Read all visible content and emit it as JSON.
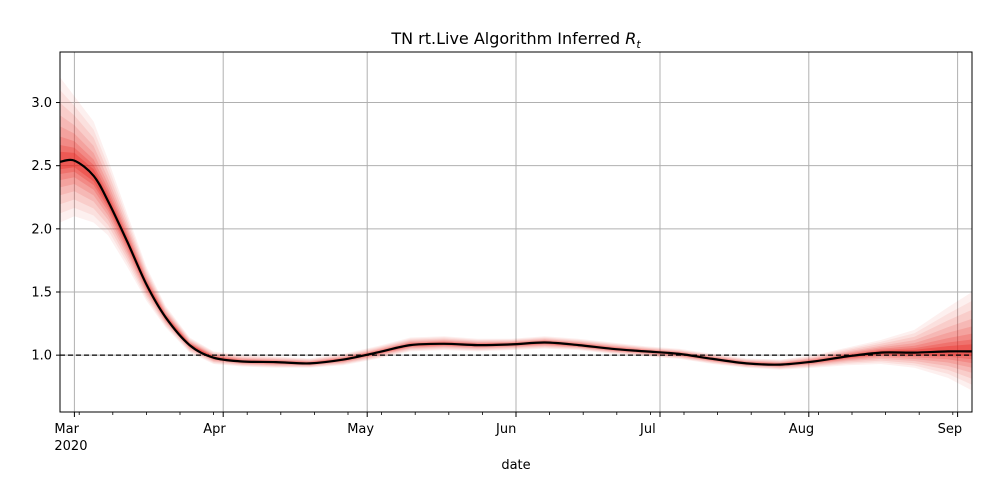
{
  "chart_data": {
    "type": "line",
    "title": "TN rt.Live Algorithm Inferred ",
    "title_symbol": "R",
    "title_subscript": "t",
    "xlabel": "date",
    "ylabel": "",
    "xlim": [
      "2020-02-27",
      "2020-09-04"
    ],
    "ylim": [
      0.55,
      3.4
    ],
    "grid": true,
    "colors": {
      "band": "#e8251e",
      "line": "#000000",
      "reference": "#000000",
      "grid": "#b0b0b0"
    },
    "x_ticks": [
      {
        "date": "2020-03-01",
        "label": "Mar",
        "sublabel": "2020"
      },
      {
        "date": "2020-04-01",
        "label": "Apr",
        "sublabel": ""
      },
      {
        "date": "2020-05-01",
        "label": "May",
        "sublabel": ""
      },
      {
        "date": "2020-06-01",
        "label": "Jun",
        "sublabel": ""
      },
      {
        "date": "2020-07-01",
        "label": "Jul",
        "sublabel": ""
      },
      {
        "date": "2020-08-01",
        "label": "Aug",
        "sublabel": ""
      },
      {
        "date": "2020-09-01",
        "label": "Sep",
        "sublabel": ""
      }
    ],
    "y_ticks": [
      {
        "value": 1.0,
        "label": "1.0"
      },
      {
        "value": 1.5,
        "label": "1.5"
      },
      {
        "value": 2.0,
        "label": "2.0"
      },
      {
        "value": 2.5,
        "label": "2.5"
      },
      {
        "value": 3.0,
        "label": "3.0"
      }
    ],
    "reference_line": {
      "value": 1.0,
      "style": "dashed"
    },
    "series": [
      {
        "points": [
          {
            "x": "2020-02-27",
            "y": 2.53,
            "lo": 2.05,
            "hi": 3.2
          },
          {
            "x": "2020-03-01",
            "y": 2.54,
            "lo": 2.1,
            "hi": 3.05
          },
          {
            "x": "2020-03-05",
            "y": 2.42,
            "lo": 2.05,
            "hi": 2.85
          },
          {
            "x": "2020-03-08",
            "y": 2.22,
            "lo": 1.95,
            "hi": 2.55
          },
          {
            "x": "2020-03-12",
            "y": 1.9,
            "lo": 1.7,
            "hi": 2.12
          },
          {
            "x": "2020-03-16",
            "y": 1.56,
            "lo": 1.43,
            "hi": 1.7
          },
          {
            "x": "2020-03-20",
            "y": 1.3,
            "lo": 1.22,
            "hi": 1.39
          },
          {
            "x": "2020-03-25",
            "y": 1.08,
            "lo": 1.02,
            "hi": 1.14
          },
          {
            "x": "2020-03-30",
            "y": 0.98,
            "lo": 0.93,
            "hi": 1.03
          },
          {
            "x": "2020-04-05",
            "y": 0.95,
            "lo": 0.91,
            "hi": 1.0
          },
          {
            "x": "2020-04-12",
            "y": 0.945,
            "lo": 0.9,
            "hi": 0.99
          },
          {
            "x": "2020-04-19",
            "y": 0.935,
            "lo": 0.9,
            "hi": 0.975
          },
          {
            "x": "2020-04-26",
            "y": 0.965,
            "lo": 0.92,
            "hi": 1.01
          },
          {
            "x": "2020-05-03",
            "y": 1.02,
            "lo": 0.97,
            "hi": 1.07
          },
          {
            "x": "2020-05-10",
            "y": 1.08,
            "lo": 1.03,
            "hi": 1.14
          },
          {
            "x": "2020-05-17",
            "y": 1.09,
            "lo": 1.04,
            "hi": 1.15
          },
          {
            "x": "2020-05-24",
            "y": 1.08,
            "lo": 1.03,
            "hi": 1.13
          },
          {
            "x": "2020-05-31",
            "y": 1.085,
            "lo": 1.04,
            "hi": 1.13
          },
          {
            "x": "2020-06-07",
            "y": 1.1,
            "lo": 1.05,
            "hi": 1.15
          },
          {
            "x": "2020-06-14",
            "y": 1.08,
            "lo": 1.04,
            "hi": 1.13
          },
          {
            "x": "2020-06-21",
            "y": 1.05,
            "lo": 1.01,
            "hi": 1.1
          },
          {
            "x": "2020-06-28",
            "y": 1.03,
            "lo": 0.99,
            "hi": 1.07
          },
          {
            "x": "2020-07-05",
            "y": 1.01,
            "lo": 0.97,
            "hi": 1.05
          },
          {
            "x": "2020-07-12",
            "y": 0.97,
            "lo": 0.93,
            "hi": 1.01
          },
          {
            "x": "2020-07-19",
            "y": 0.935,
            "lo": 0.9,
            "hi": 0.975
          },
          {
            "x": "2020-07-26",
            "y": 0.925,
            "lo": 0.885,
            "hi": 0.965
          },
          {
            "x": "2020-08-02",
            "y": 0.95,
            "lo": 0.9,
            "hi": 1.0
          },
          {
            "x": "2020-08-09",
            "y": 0.99,
            "lo": 0.92,
            "hi": 1.06
          },
          {
            "x": "2020-08-16",
            "y": 1.02,
            "lo": 0.93,
            "hi": 1.12
          },
          {
            "x": "2020-08-23",
            "y": 1.02,
            "lo": 0.9,
            "hi": 1.2
          },
          {
            "x": "2020-08-30",
            "y": 1.03,
            "lo": 0.82,
            "hi": 1.38
          },
          {
            "x": "2020-09-04",
            "y": 1.03,
            "lo": 0.72,
            "hi": 1.5
          }
        ]
      }
    ]
  }
}
